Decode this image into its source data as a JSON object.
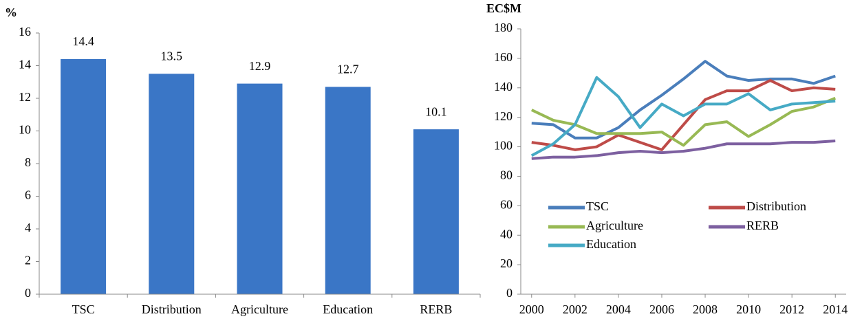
{
  "chart_data": [
    {
      "type": "bar",
      "y_label": "%",
      "categories": [
        "TSC",
        "Distribution",
        "Agriculture",
        "Education",
        "RERB"
      ],
      "values": [
        14.4,
        13.5,
        12.9,
        12.7,
        10.1
      ],
      "color": "#3a76c6",
      "ylim": [
        0,
        16
      ],
      "yticks": [
        0,
        2,
        4,
        6,
        8,
        10,
        12,
        14,
        16
      ]
    },
    {
      "type": "line",
      "y_label": "EC$M",
      "x": [
        2000,
        2001,
        2002,
        2003,
        2004,
        2005,
        2006,
        2007,
        2008,
        2009,
        2010,
        2011,
        2012,
        2013,
        2014
      ],
      "xlim": [
        1999.5,
        2014.5
      ],
      "xticks": [
        2000,
        2002,
        2004,
        2006,
        2008,
        2010,
        2012,
        2014
      ],
      "ylim": [
        0,
        180
      ],
      "yticks": [
        0,
        20,
        40,
        60,
        80,
        100,
        120,
        140,
        160,
        180
      ],
      "series": [
        {
          "name": "TSC",
          "color": "#4a7ebb",
          "values": [
            116,
            115,
            106,
            106,
            113,
            125,
            135,
            146,
            158,
            148,
            145,
            146,
            146,
            143,
            148
          ]
        },
        {
          "name": "Distribution",
          "color": "#be4b48",
          "values": [
            103,
            101,
            98,
            100,
            108,
            103,
            98,
            115,
            132,
            138,
            138,
            145,
            138,
            140,
            139
          ]
        },
        {
          "name": "Agriculture",
          "color": "#98b954",
          "values": [
            125,
            118,
            115,
            109,
            109,
            109,
            110,
            101,
            115,
            117,
            107,
            115,
            124,
            127,
            133
          ]
        },
        {
          "name": "RERB",
          "color": "#7d60a0",
          "values": [
            92,
            93,
            93,
            94,
            96,
            97,
            96,
            97,
            99,
            102,
            102,
            102,
            103,
            103,
            104
          ]
        },
        {
          "name": "Education",
          "color": "#46aac5",
          "values": [
            94,
            102,
            115,
            147,
            134,
            113,
            129,
            121,
            129,
            129,
            136,
            125,
            129,
            130,
            131
          ]
        }
      ]
    }
  ]
}
